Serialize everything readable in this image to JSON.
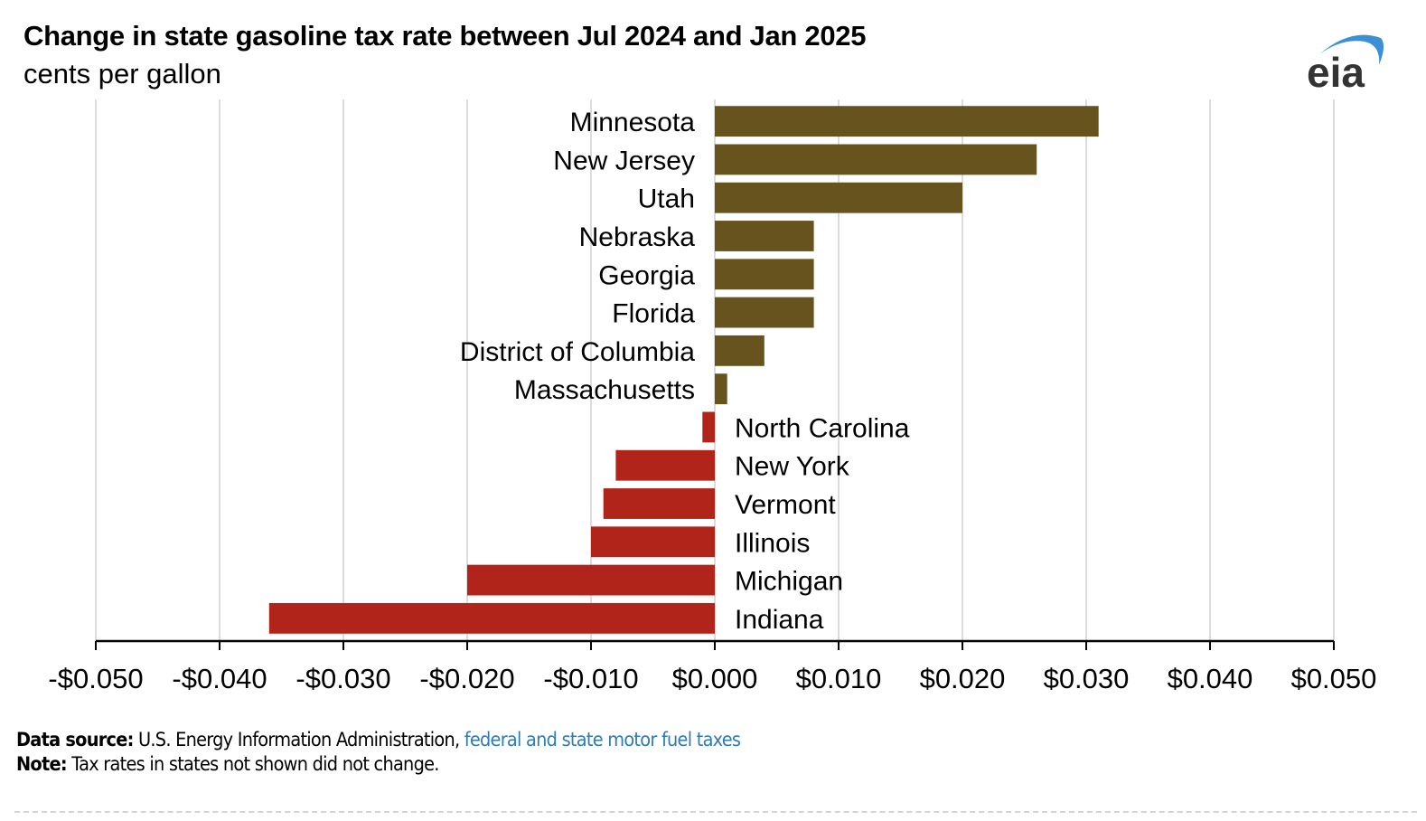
{
  "header": {
    "title": "Change in state gasoline tax rate between Jul 2024 and Jan 2025",
    "subtitle": "cents per gallon",
    "logo_text": "eia",
    "logo_icon": "eia-logo-arc-icon"
  },
  "colors": {
    "positive": "#66531e",
    "negative": "#b0241a",
    "grid": "#dcdcdc",
    "axis": "#000000",
    "link": "#2f7bb5",
    "logo_arc": "#3b8fd6",
    "logo_text": "#333333"
  },
  "chart_data": {
    "type": "bar",
    "orientation": "horizontal",
    "title": "Change in state gasoline tax rate between Jul 2024 and Jan 2025",
    "subtitle": "cents per gallon",
    "xlabel": "",
    "ylabel": "",
    "xlim": [
      -0.05,
      0.05
    ],
    "grid": true,
    "legend": "none",
    "categories": [
      "Minnesota",
      "New Jersey",
      "Utah",
      "Nebraska",
      "Georgia",
      "Florida",
      "District of Columbia",
      "Massachusetts",
      "North Carolina",
      "New York",
      "Vermont",
      "Illinois",
      "Michigan",
      "Indiana"
    ],
    "values": [
      0.031,
      0.026,
      0.02,
      0.008,
      0.008,
      0.008,
      0.004,
      0.001,
      -0.001,
      -0.008,
      -0.009,
      -0.01,
      -0.02,
      -0.036
    ],
    "xticks": [
      -0.05,
      -0.04,
      -0.03,
      -0.02,
      -0.01,
      0,
      0.01,
      0.02,
      0.03,
      0.04,
      0.05
    ],
    "xtick_labels": [
      "-$0.050",
      "-$0.040",
      "-$0.030",
      "-$0.020",
      "-$0.010",
      "$0.000",
      "$0.010",
      "$0.020",
      "$0.030",
      "$0.040",
      "$0.050"
    ]
  },
  "footer": {
    "source_label": "Data source:",
    "source_text": " U.S. Energy Information Administration, ",
    "source_link": "federal and state motor fuel taxes",
    "note_label": "Note:",
    "note_text": " Tax rates in states not shown did not change."
  }
}
